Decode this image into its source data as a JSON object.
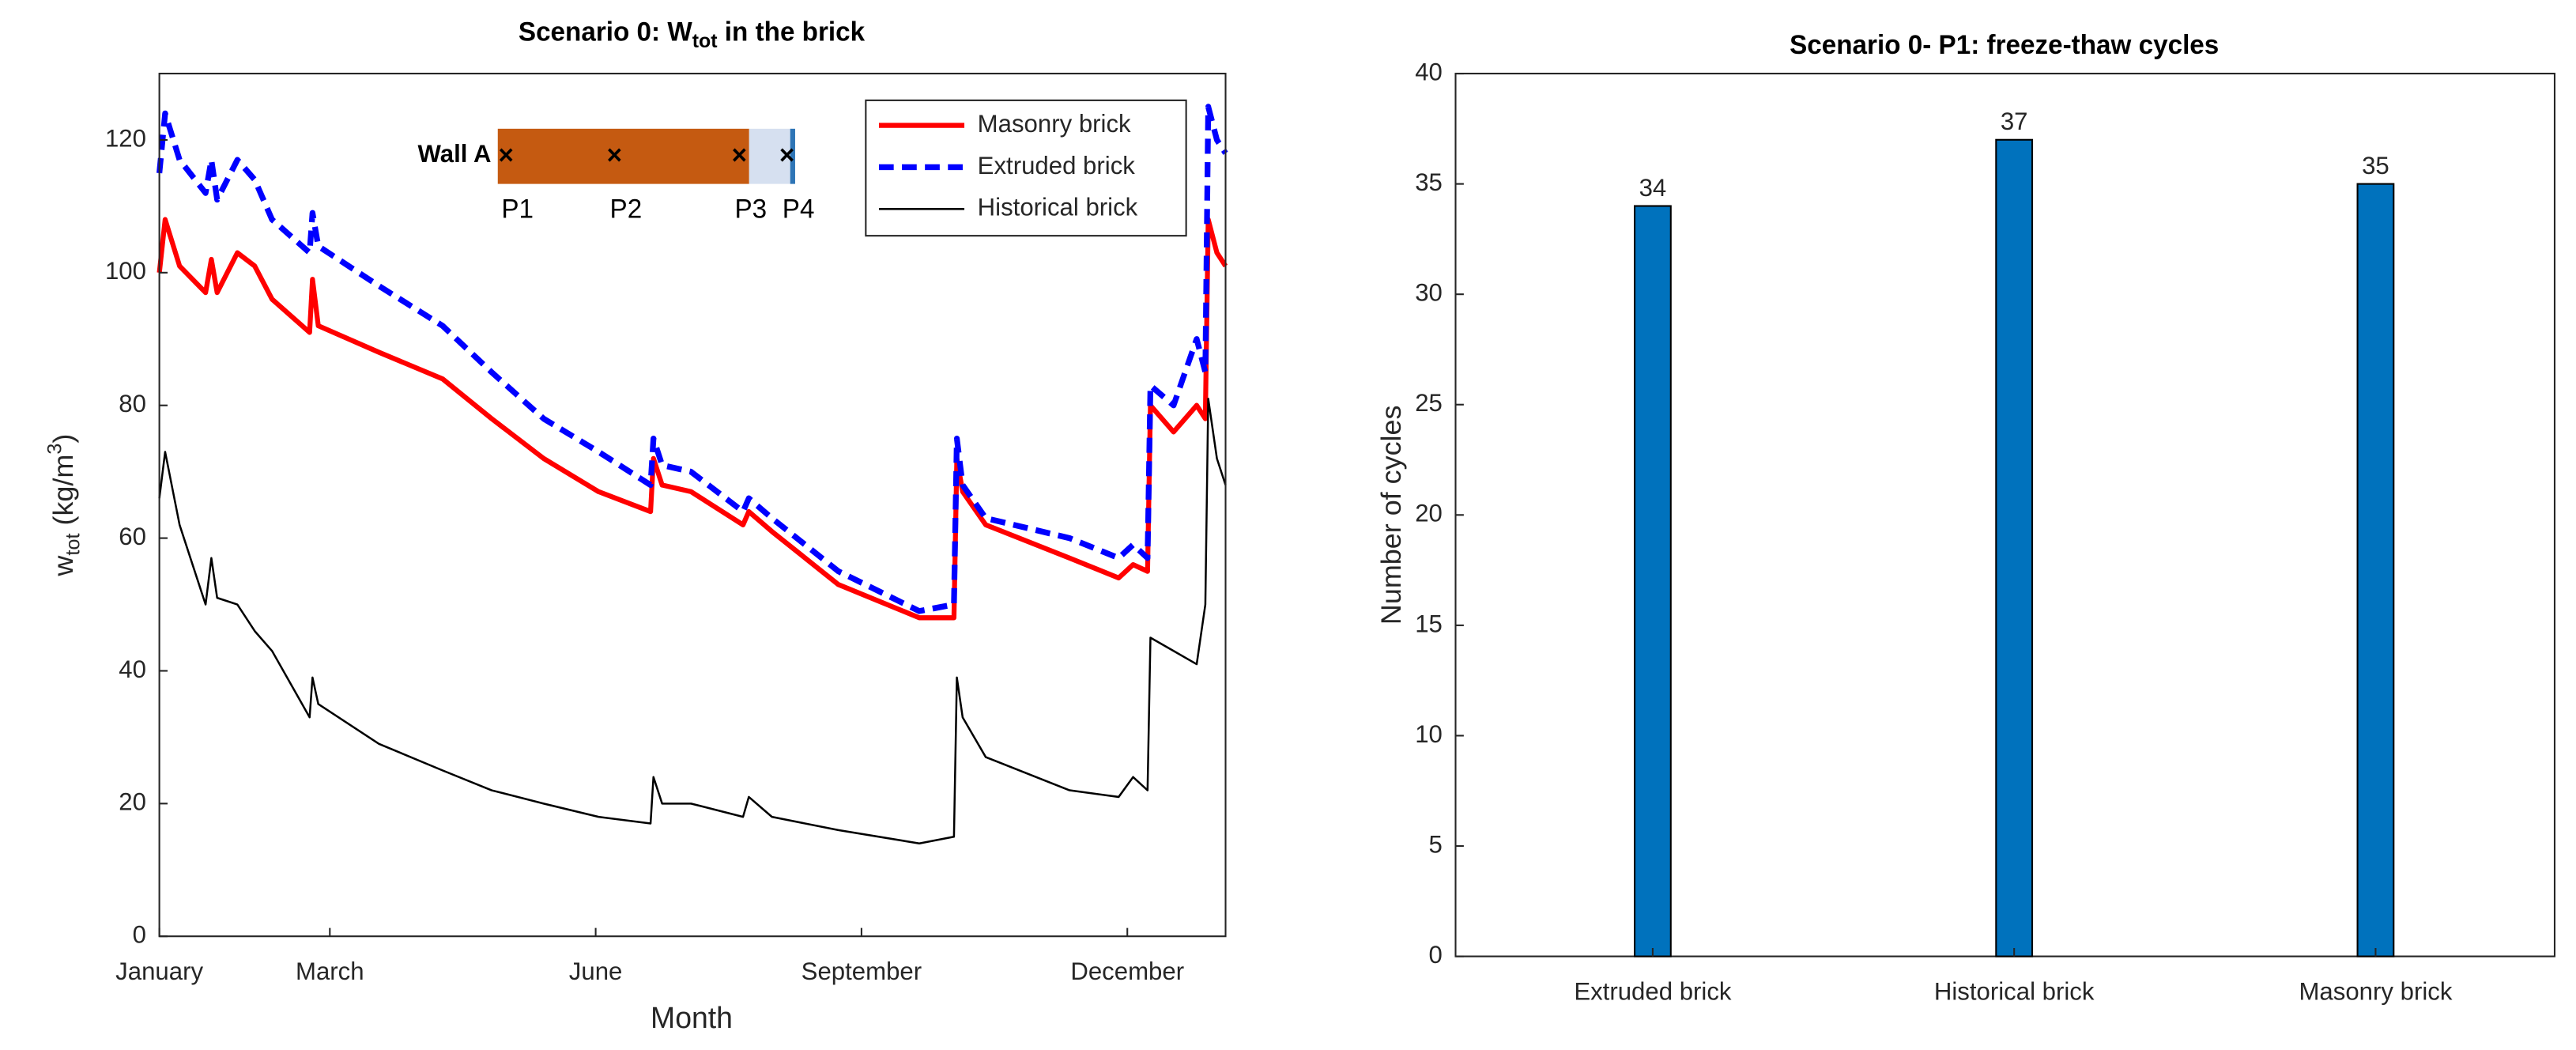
{
  "chart_data": [
    {
      "type": "line",
      "title": [
        "Scenario 0: W",
        "tot",
        " in the brick"
      ],
      "x_label": "Month",
      "y_label": [
        "w",
        "tot",
        " (kg/m",
        "3",
        ")"
      ],
      "x": [
        0,
        2,
        7,
        16,
        18,
        20,
        27,
        33,
        39,
        52,
        53,
        55,
        76,
        98,
        115,
        133,
        152,
        170,
        171,
        174,
        184,
        202,
        204,
        212,
        235,
        263,
        275,
        276,
        278,
        286,
        315,
        332,
        337,
        342,
        343,
        351,
        359,
        362,
        363,
        366,
        369
      ],
      "series": [
        {
          "name": "Masonry brick",
          "color": "#ff0000",
          "style": "solid",
          "values": [
            100,
            108,
            101,
            97,
            102,
            97,
            103,
            101,
            96,
            91,
            99,
            92,
            88,
            84,
            78,
            72,
            67,
            64,
            72,
            68,
            67,
            62,
            64,
            61,
            53,
            48,
            48,
            72,
            67,
            62,
            57,
            54,
            56,
            55,
            80,
            76,
            80,
            78,
            108,
            103,
            101
          ]
        },
        {
          "name": "Extruded brick",
          "color": "#0000ff",
          "style": "dashed",
          "values": [
            115,
            124,
            117,
            112,
            117,
            111,
            117,
            114,
            108,
            103,
            109,
            104,
            98,
            92,
            85,
            78,
            73,
            68,
            75,
            71,
            70,
            64,
            66,
            63,
            55,
            49,
            50,
            75,
            68,
            63,
            60,
            57,
            59,
            57,
            83,
            80,
            90,
            85,
            125,
            120,
            118
          ]
        },
        {
          "name": "Historical brick",
          "color": "#000000",
          "style": "thin",
          "values": [
            66,
            73,
            62,
            50,
            57,
            51,
            50,
            46,
            43,
            33,
            39,
            35,
            29,
            25,
            22,
            20,
            18,
            17,
            24,
            20,
            20,
            18,
            21,
            18,
            16,
            14,
            15,
            39,
            33,
            27,
            22,
            21,
            24,
            22,
            45,
            43,
            41,
            50,
            81,
            72,
            68
          ]
        }
      ],
      "xlim": [
        0,
        369
      ],
      "xticks": [
        {
          "value": 0,
          "label": "January"
        },
        {
          "value": 59,
          "label": "March"
        },
        {
          "value": 151,
          "label": "June"
        },
        {
          "value": 243,
          "label": "September"
        },
        {
          "value": 335,
          "label": "December"
        }
      ],
      "ylim": [
        0,
        130
      ],
      "yticks": [
        0,
        20,
        40,
        60,
        80,
        100,
        120
      ],
      "legend": "upper right",
      "inset": {
        "label": "Wall A",
        "points": [
          "P1",
          "P2",
          "P3",
          "P4"
        ]
      }
    },
    {
      "type": "bar",
      "title": "Scenario 0- P1: freeze-thaw cycles",
      "y_label": "Number of cycles",
      "categories": [
        "Extruded brick",
        "Historical brick",
        "Masonry brick"
      ],
      "values": [
        34,
        37,
        35
      ],
      "color": "#0072bd",
      "ylim": [
        0,
        40
      ],
      "yticks": [
        0,
        5,
        10,
        15,
        20,
        25,
        30,
        35,
        40
      ]
    }
  ]
}
